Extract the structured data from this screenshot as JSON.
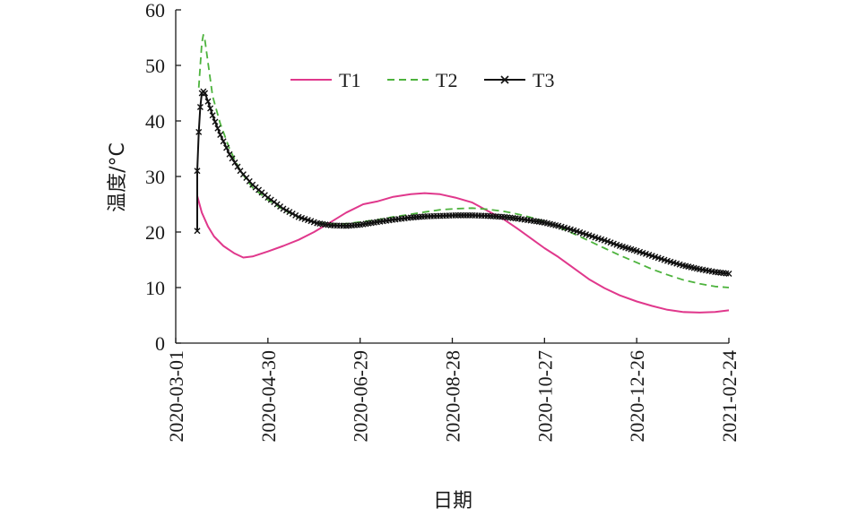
{
  "chart_data": {
    "type": "line",
    "xlabel": "日期",
    "ylabel": "温度/°C",
    "ylim": [
      0,
      60
    ],
    "xlim": [
      "2020-03-01",
      "2021-02-24"
    ],
    "yticks": [
      0,
      10,
      20,
      30,
      40,
      50,
      60
    ],
    "xticks": [
      "2020-03-01",
      "2020-04-30",
      "2020-06-29",
      "2020-08-28",
      "2020-10-27",
      "2020-12-26",
      "2021-02-24"
    ],
    "grid": false,
    "legend": "top-center",
    "series": [
      {
        "name": "T1",
        "color": "#e0388c",
        "style": "solid",
        "x": [
          "2020-03-15",
          "2020-03-18",
          "2020-03-22",
          "2020-03-26",
          "2020-04-01",
          "2020-04-08",
          "2020-04-14",
          "2020-04-20",
          "2020-04-30",
          "2020-05-10",
          "2020-05-20",
          "2020-05-30",
          "2020-06-10",
          "2020-06-20",
          "2020-07-01",
          "2020-07-10",
          "2020-07-20",
          "2020-08-01",
          "2020-08-10",
          "2020-08-20",
          "2020-08-30",
          "2020-09-10",
          "2020-09-20",
          "2020-10-01",
          "2020-10-10",
          "2020-10-20",
          "2020-10-27",
          "2020-11-05",
          "2020-11-15",
          "2020-11-25",
          "2020-12-05",
          "2020-12-15",
          "2020-12-26",
          "2021-01-05",
          "2021-01-15",
          "2021-01-25",
          "2021-02-05",
          "2021-02-15",
          "2021-02-24"
        ],
        "y": [
          26.5,
          23.5,
          21,
          19.2,
          17.5,
          16.2,
          15.4,
          15.6,
          16.5,
          17.5,
          18.6,
          20,
          21.8,
          23.5,
          25.0,
          25.5,
          26.3,
          26.8,
          27.0,
          26.8,
          26.2,
          25.3,
          23.8,
          22.2,
          20.5,
          18.5,
          17.1,
          15.5,
          13.5,
          11.5,
          9.9,
          8.6,
          7.5,
          6.7,
          6.0,
          5.6,
          5.5,
          5.6,
          5.9
        ]
      },
      {
        "name": "T2",
        "color": "#4db33d",
        "style": "dashed",
        "x": [
          "2020-03-16",
          "2020-03-17",
          "2020-03-18",
          "2020-03-19",
          "2020-03-20",
          "2020-03-22",
          "2020-03-25",
          "2020-03-30",
          "2020-04-05",
          "2020-04-12",
          "2020-04-20",
          "2020-04-30",
          "2020-05-10",
          "2020-05-20",
          "2020-06-01",
          "2020-06-10",
          "2020-06-20",
          "2020-06-29",
          "2020-07-10",
          "2020-07-20",
          "2020-08-01",
          "2020-08-10",
          "2020-08-20",
          "2020-08-30",
          "2020-09-10",
          "2020-09-20",
          "2020-10-01",
          "2020-10-10",
          "2020-10-20",
          "2020-10-27",
          "2020-11-05",
          "2020-11-15",
          "2020-11-25",
          "2020-12-05",
          "2020-12-15",
          "2020-12-26",
          "2021-01-05",
          "2021-01-15",
          "2021-01-25",
          "2021-02-05",
          "2021-02-15",
          "2021-02-24"
        ],
        "y": [
          46,
          50,
          54,
          55.5,
          54.5,
          50.5,
          44.5,
          39.5,
          35,
          31,
          28,
          25.8,
          24,
          22.6,
          21.7,
          21.4,
          21.5,
          21.8,
          22.2,
          22.7,
          23.2,
          23.6,
          24.0,
          24.2,
          24.3,
          24.1,
          23.7,
          23.2,
          22.5,
          21.9,
          20.9,
          19.7,
          18.4,
          17.1,
          15.8,
          14.5,
          13.3,
          12.3,
          11.4,
          10.7,
          10.2,
          10.0
        ]
      },
      {
        "name": "T3",
        "color": "#111111",
        "style": "solid-x",
        "x": [
          "2020-03-15",
          "2020-03-15",
          "2020-03-16",
          "2020-03-17",
          "2020-03-18",
          "2020-03-19",
          "2020-03-20",
          "2020-03-22",
          "2020-03-25",
          "2020-03-30",
          "2020-04-05",
          "2020-04-12",
          "2020-04-20",
          "2020-04-30",
          "2020-05-10",
          "2020-05-20",
          "2020-06-01",
          "2020-06-10",
          "2020-06-20",
          "2020-06-29",
          "2020-07-10",
          "2020-07-20",
          "2020-08-01",
          "2020-08-10",
          "2020-08-20",
          "2020-08-30",
          "2020-09-10",
          "2020-09-20",
          "2020-10-01",
          "2020-10-10",
          "2020-10-20",
          "2020-10-27",
          "2020-11-05",
          "2020-11-15",
          "2020-11-25",
          "2020-12-05",
          "2020-12-15",
          "2020-12-26",
          "2021-01-05",
          "2021-01-15",
          "2021-01-25",
          "2021-02-05",
          "2021-02-15",
          "2021-02-24"
        ],
        "y": [
          20.2,
          31,
          38,
          42.5,
          45,
          45.3,
          45,
          43.5,
          41,
          37.5,
          34,
          31,
          28.5,
          26.2,
          24.2,
          22.7,
          21.6,
          21.2,
          21.1,
          21.3,
          21.8,
          22.2,
          22.6,
          22.8,
          22.9,
          23.0,
          23.0,
          22.9,
          22.7,
          22.4,
          22.0,
          21.7,
          21.1,
          20.3,
          19.4,
          18.5,
          17.5,
          16.6,
          15.7,
          14.8,
          14.0,
          13.3,
          12.8,
          12.5
        ]
      }
    ]
  }
}
